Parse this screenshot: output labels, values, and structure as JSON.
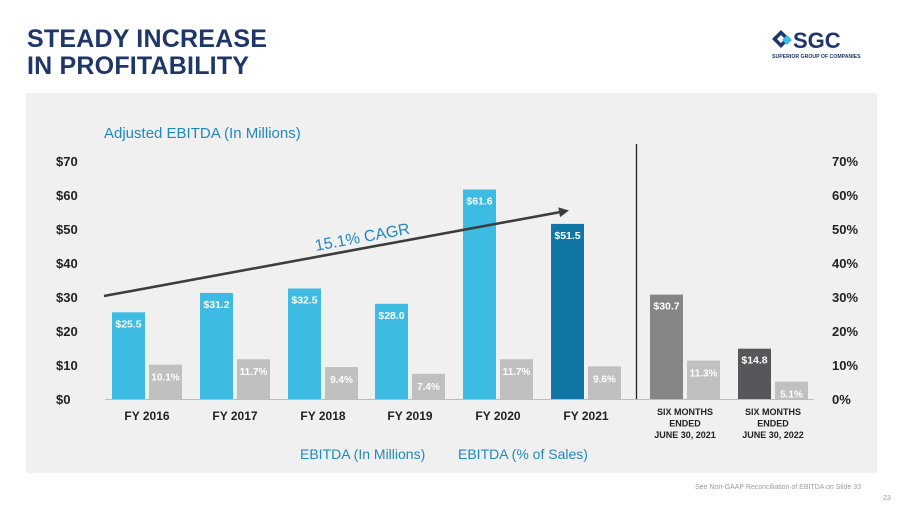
{
  "slide": {
    "title_line1": "STEADY INCREASE",
    "title_line2": "IN PROFITABILITY",
    "logo_text": "SGC",
    "logo_subtext": "SUPERIOR GROUP OF COMPANIES",
    "footnote": "See Non-GAAP Reconciliation of EBITDA on Slide 33",
    "page_number": "23"
  },
  "colors": {
    "title": "#1e3668",
    "bar_light_blue": "#3dbbe3",
    "bar_dark_blue": "#0f76a6",
    "bar_gray": "#858585",
    "bar_dark_gray": "#57575b",
    "bar_pct": "#c0c0c0",
    "subtitle": "#1f88c0"
  },
  "chart_data": {
    "type": "bar",
    "title": "Adjusted EBITDA (In Millions)",
    "categories": [
      "FY 2016",
      "FY 2017",
      "FY 2018",
      "FY 2019",
      "FY 2020",
      "FY 2021",
      "SIX MONTHS ENDED JUNE 30, 2021",
      "SIX MONTHS ENDED JUNE 30, 2022"
    ],
    "category_lines": [
      [
        "FY 2016"
      ],
      [
        "FY 2017"
      ],
      [
        "FY 2018"
      ],
      [
        "FY 2019"
      ],
      [
        "FY 2020"
      ],
      [
        "FY 2021"
      ],
      [
        "SIX MONTHS",
        "ENDED",
        "JUNE 30, 2021"
      ],
      [
        "SIX MONTHS",
        "ENDED",
        "JUNE 30, 2022"
      ]
    ],
    "series": [
      {
        "name": "EBITDA (In Millions)",
        "axis": "left",
        "values": [
          25.5,
          31.2,
          32.5,
          28.0,
          61.6,
          51.5,
          30.7,
          14.8
        ],
        "labels": [
          "$25.5",
          "$31.2",
          "$32.5",
          "$28.0",
          "$61.6",
          "$51.5",
          "$30.7",
          "$14.8"
        ]
      },
      {
        "name": "EBITDA (% of Sales)",
        "axis": "right",
        "values": [
          10.1,
          11.7,
          9.4,
          7.4,
          11.7,
          9.6,
          11.3,
          5.1
        ],
        "labels": [
          "10.1%",
          "11.7%",
          "9.4%",
          "7.4%",
          "11.7%",
          "9.6%",
          "11.3%",
          "5.1%"
        ]
      }
    ],
    "left_axis": {
      "ylim": [
        0,
        70
      ],
      "ticks": [
        "$0",
        "$10",
        "$20",
        "$30",
        "$40",
        "$50",
        "$60",
        "$70"
      ]
    },
    "right_axis": {
      "ylim": [
        0,
        70
      ],
      "ticks": [
        "0%",
        "10%",
        "20%",
        "30%",
        "40%",
        "50%",
        "60%",
        "70%"
      ]
    },
    "annotation": "15.1% CAGR",
    "grid": false,
    "legend_position": "bottom-center"
  }
}
